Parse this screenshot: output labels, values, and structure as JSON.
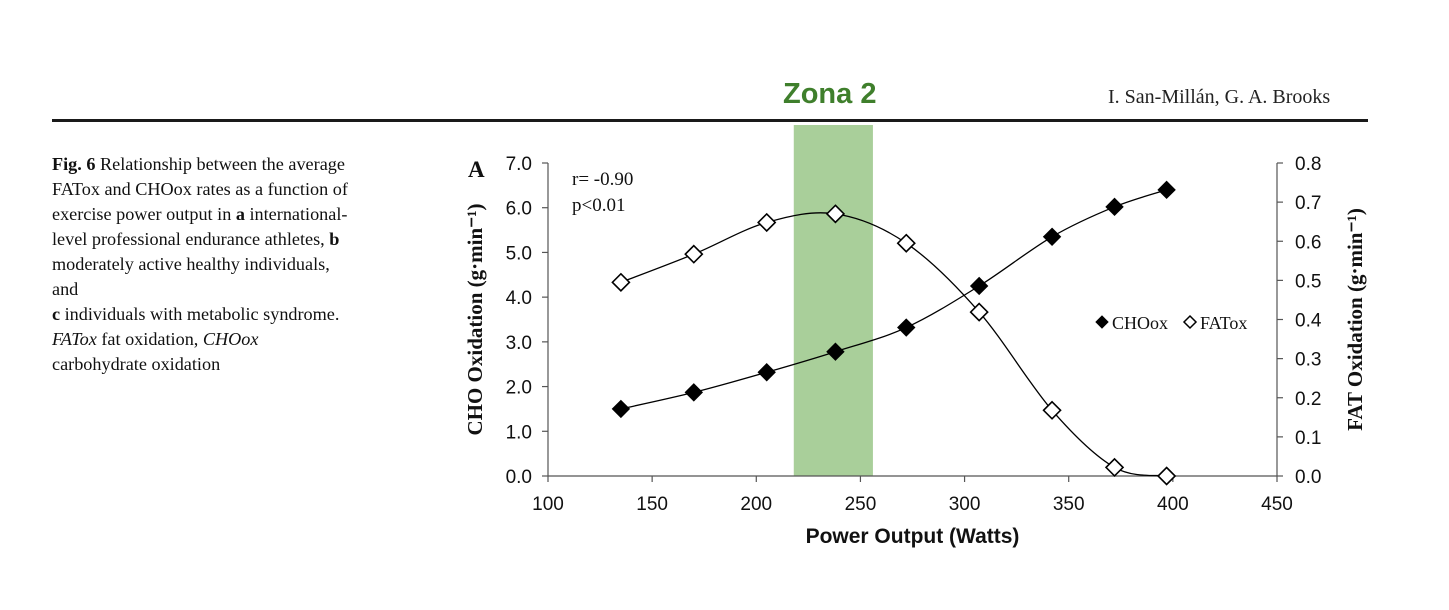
{
  "header": {
    "author": "I. San-Millán, G. A. Brooks",
    "zone_label": "Zona 2"
  },
  "caption": {
    "fig_label": "Fig. 6",
    "text_part1": "Relationship between the average FATox and CHOox rates as a function of exercise power output in",
    "item_a_letter": "a",
    "item_a_text": "international-level professional endurance athletes,",
    "item_b_letter": "b",
    "item_b_text": "moderately active healthy individuals, and",
    "item_c_letter": "c",
    "item_c_text": "individuals with metabolic syndrome.",
    "fatox_abbr": "FATox",
    "fatox_def": "fat oxidation,",
    "choox_abbr": "CHOox",
    "choox_def": "carbohydrate oxidation"
  },
  "colors": {
    "zone_fill": "#a9cf9a",
    "zone_label": "#3f7f2c",
    "series": "#000000"
  },
  "chart_data": {
    "type": "scatter",
    "panel_label": "A",
    "xlabel": "Power Output (Watts)",
    "ylabel_left": "CHO Oxidation (g·min⁻¹)",
    "ylabel_right": "FAT Oxidation (g·min⁻¹)",
    "xlim": [
      100,
      450
    ],
    "ylim_left": [
      0.0,
      7.0
    ],
    "ylim_right": [
      0.0,
      0.8
    ],
    "x_ticks": [
      "100",
      "150",
      "200",
      "250",
      "300",
      "350",
      "400",
      "450"
    ],
    "y_left_ticks": [
      "0.0",
      "1.0",
      "2.0",
      "3.0",
      "4.0",
      "5.0",
      "6.0",
      "7.0"
    ],
    "y_right_ticks": [
      "0.0",
      "0.1",
      "0.2",
      "0.3",
      "0.4",
      "0.5",
      "0.6",
      "0.7",
      "0.8"
    ],
    "annotations": [
      "r= -0.90",
      "p<0.01"
    ],
    "highlight_band": {
      "label": "Zona 2",
      "x_from": 218,
      "x_to": 256
    },
    "legend_position": "right-middle",
    "series": [
      {
        "name": "CHOox",
        "axis": "left",
        "marker": "filled-diamond",
        "x": [
          135,
          170,
          205,
          238,
          272,
          307,
          342,
          372,
          397
        ],
        "y": [
          1.5,
          1.87,
          2.32,
          2.78,
          3.32,
          4.25,
          5.35,
          6.02,
          6.4
        ]
      },
      {
        "name": "FATox",
        "axis": "right",
        "marker": "open-diamond",
        "x": [
          135,
          170,
          205,
          238,
          272,
          307,
          342,
          372,
          397
        ],
        "y": [
          0.495,
          0.567,
          0.648,
          0.67,
          0.595,
          0.419,
          0.168,
          0.022,
          0.0
        ]
      }
    ]
  }
}
